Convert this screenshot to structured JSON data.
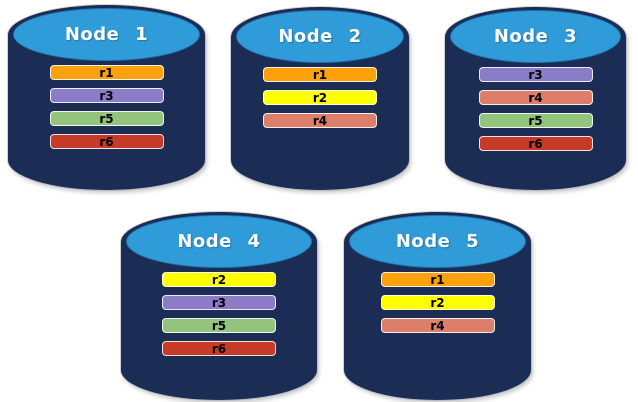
{
  "diagram": {
    "description_colors": {
      "cylinder_body": "#1B2C55",
      "cylinder_cap": "#2F9BD8",
      "title_text": "#FFFFFF",
      "bar_text": "#000000",
      "replica_colors": {
        "r1": "#FBA10B",
        "r2": "#FFFF00",
        "r3": "#8B7CC7",
        "r4": "#DD7E6B",
        "r5": "#93C47E",
        "r6": "#C63A28"
      }
    },
    "nodes": [
      {
        "label": "Node 1",
        "replicas": [
          "r1",
          "r3",
          "r5",
          "r6"
        ]
      },
      {
        "label": "Node 2",
        "replicas": [
          "r1",
          "r2",
          "r4"
        ]
      },
      {
        "label": "Node 3",
        "replicas": [
          "r3",
          "r4",
          "r5",
          "r6"
        ]
      },
      {
        "label": "Node 4",
        "replicas": [
          "r2",
          "r3",
          "r5",
          "r6"
        ]
      },
      {
        "label": "Node 5",
        "replicas": [
          "r1",
          "r2",
          "r4"
        ]
      }
    ]
  }
}
